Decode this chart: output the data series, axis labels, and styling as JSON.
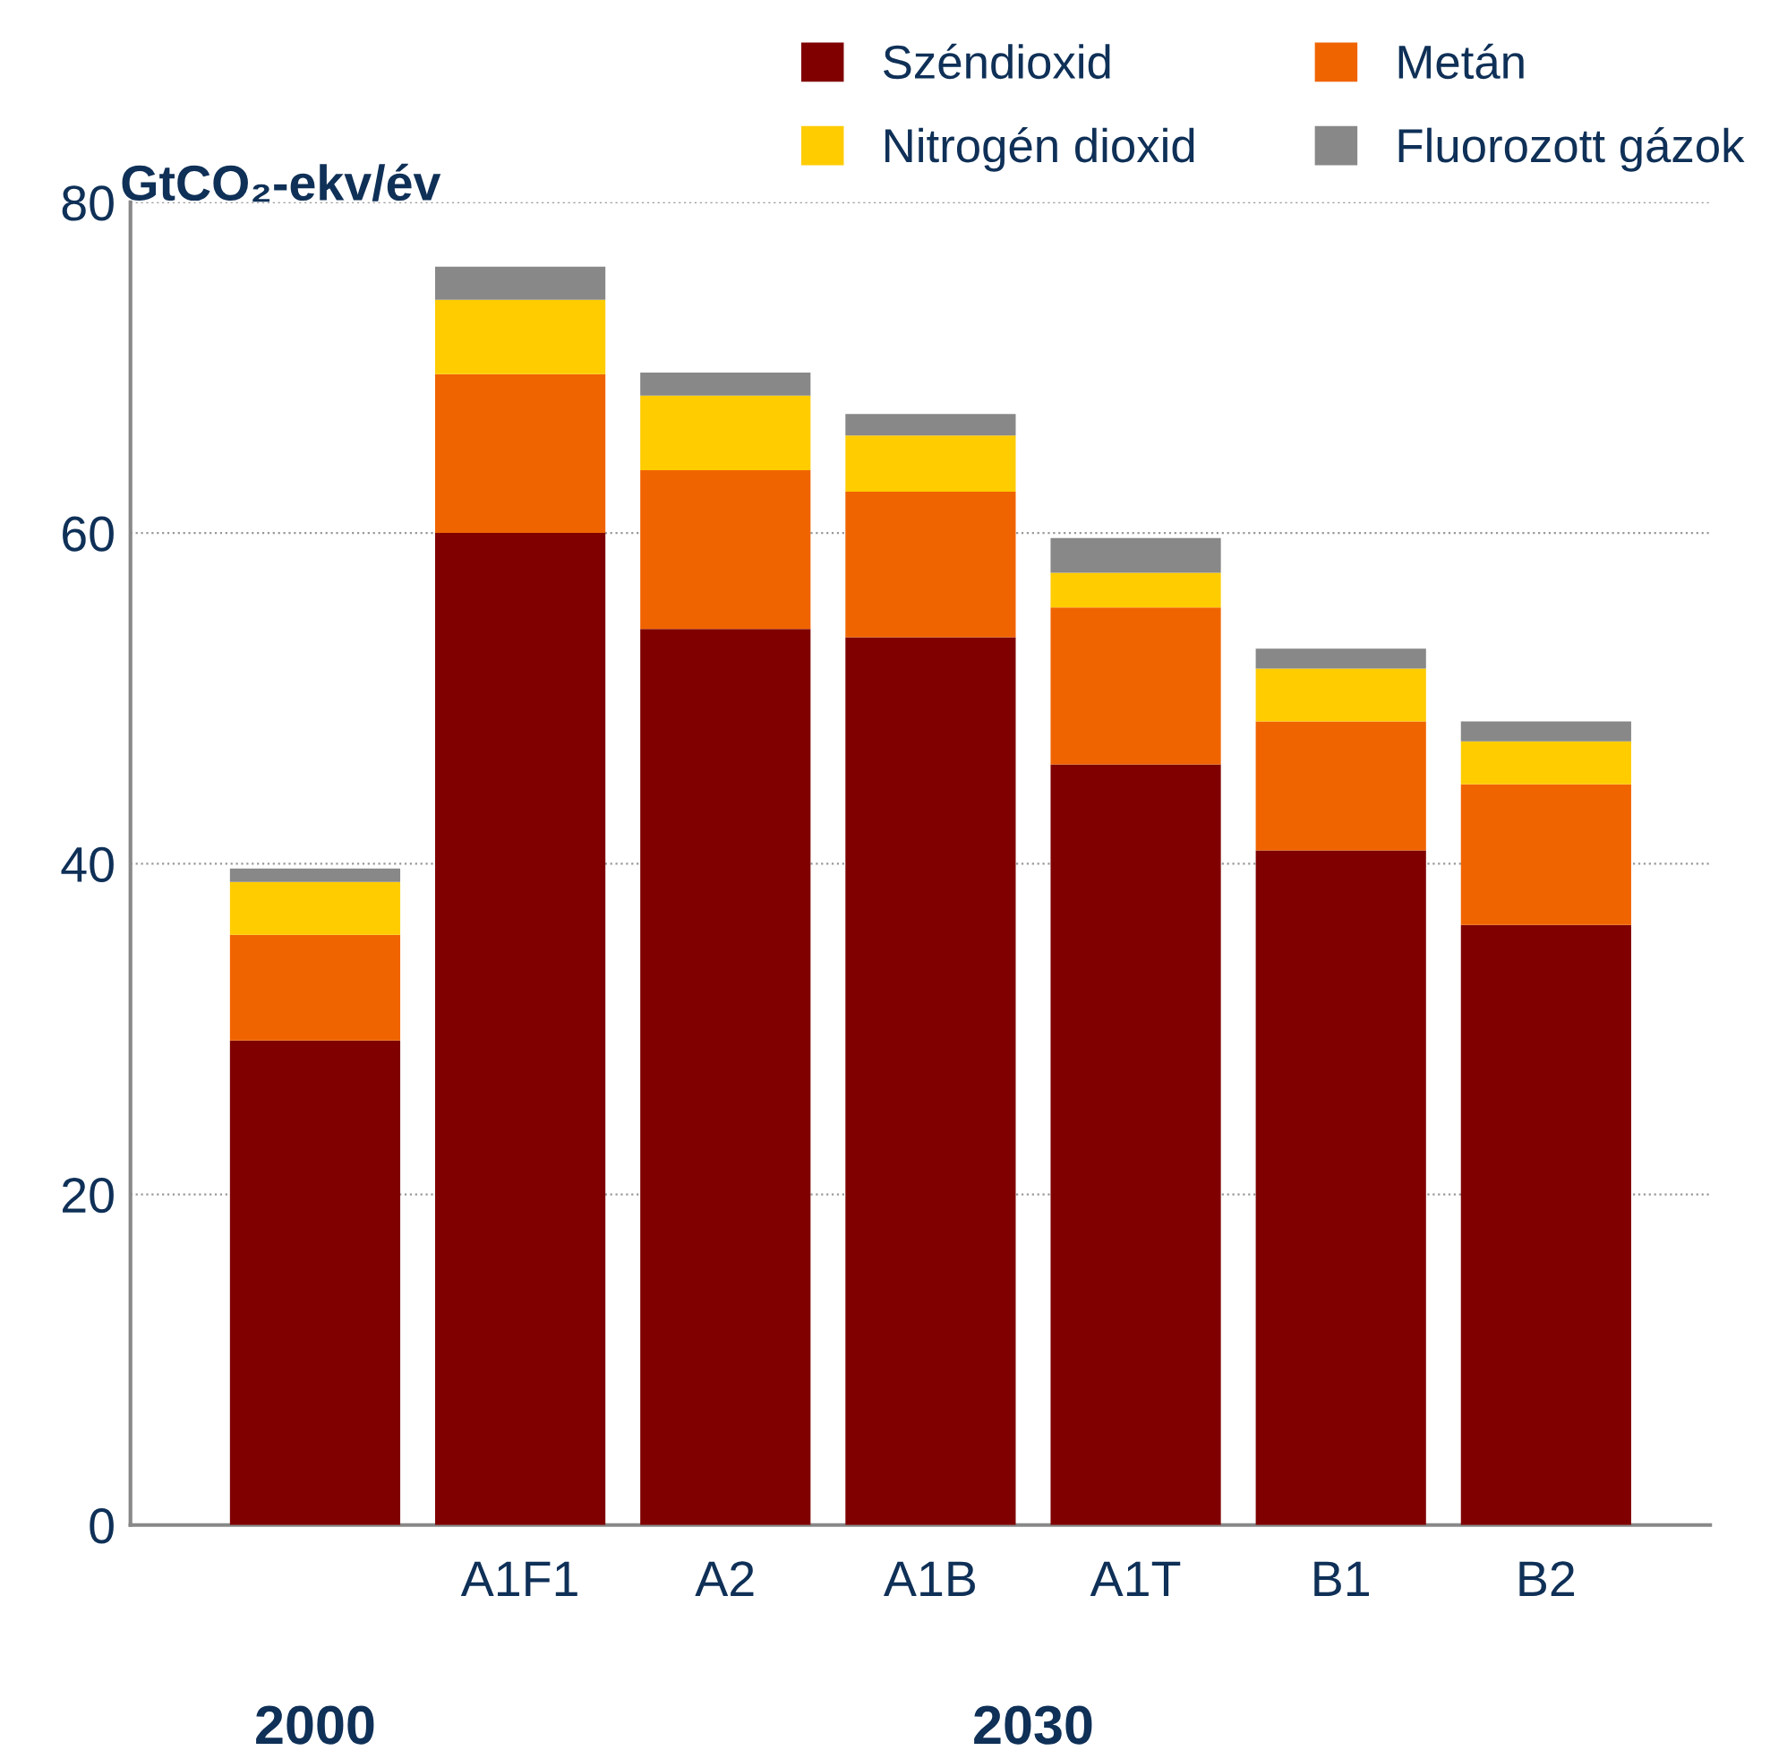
{
  "chart_data": {
    "type": "bar",
    "stacked": true,
    "ylabel": "GtCO₂-ekv/év",
    "categories": [
      null,
      "A1F1",
      "A2",
      "A1B",
      "A1T",
      "B1",
      "B2"
    ],
    "series": [
      {
        "name": "Széndioxid",
        "color": "#800000",
        "values": [
          29.3,
          60.0,
          54.2,
          53.7,
          46.0,
          40.8,
          36.3
        ]
      },
      {
        "name": "Metán",
        "color": "#f06400",
        "values": [
          6.4,
          9.6,
          9.6,
          8.8,
          9.5,
          7.8,
          8.5
        ]
      },
      {
        "name": "Nitrogén dioxid",
        "color": "#ffcc00",
        "values": [
          3.2,
          4.5,
          4.5,
          3.4,
          2.1,
          3.2,
          2.6
        ]
      },
      {
        "name": "Fluorozott gázok",
        "color": "#888888",
        "values": [
          0.8,
          2.0,
          1.4,
          1.3,
          2.1,
          1.2,
          1.2
        ]
      }
    ],
    "ylim": [
      0,
      80
    ],
    "yticks": [
      0,
      20,
      40,
      60,
      80
    ],
    "grid": "y",
    "legend": "top",
    "annotations": [
      "2000",
      "2030"
    ]
  }
}
